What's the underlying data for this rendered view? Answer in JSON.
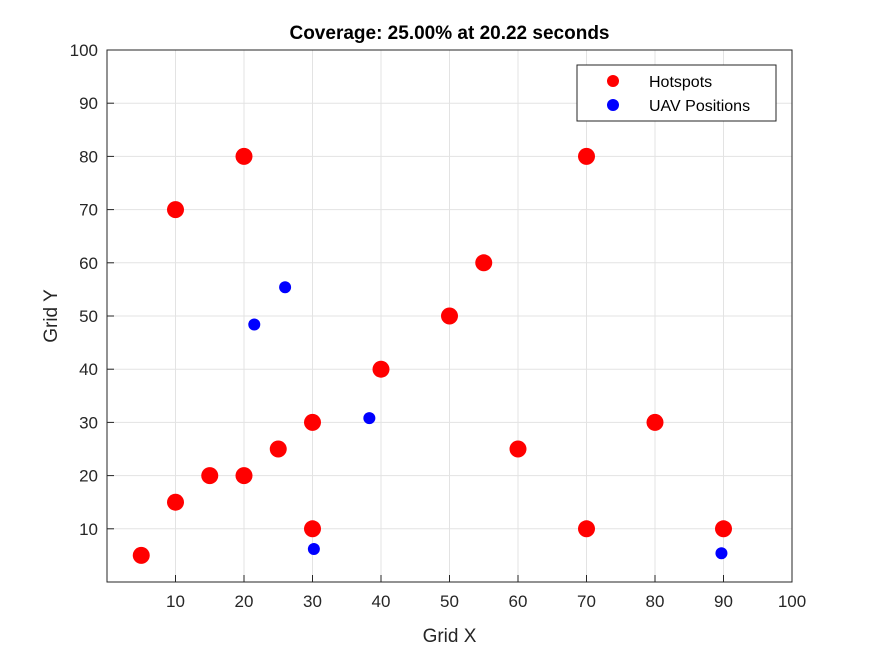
{
  "chart_data": {
    "type": "scatter",
    "title": "Coverage: 25.00% at 20.22 seconds",
    "xlabel": "Grid X",
    "ylabel": "Grid Y",
    "xlim": [
      0,
      100
    ],
    "ylim": [
      0,
      100
    ],
    "xticks": [
      10,
      20,
      30,
      40,
      50,
      60,
      70,
      80,
      90,
      100
    ],
    "yticks": [
      10,
      20,
      30,
      40,
      50,
      60,
      70,
      80,
      90,
      100
    ],
    "grid": true,
    "legend_position": "top-right",
    "series": [
      {
        "name": "Hotspots",
        "color": "#ff0000",
        "x": [
          5,
          10,
          15,
          20,
          25,
          30,
          30,
          40,
          50,
          55,
          60,
          70,
          80,
          90,
          10,
          20,
          70
        ],
        "y": [
          5,
          15,
          20,
          20,
          25,
          10,
          30,
          40,
          50,
          60,
          25,
          10,
          30,
          10,
          70,
          80,
          80
        ]
      },
      {
        "name": "UAV Positions",
        "color": "#0000ff",
        "x": [
          21.5,
          26,
          38.3,
          30.2,
          89.7
        ],
        "y": [
          48.4,
          55.4,
          30.8,
          6.2,
          5.4
        ]
      }
    ]
  }
}
